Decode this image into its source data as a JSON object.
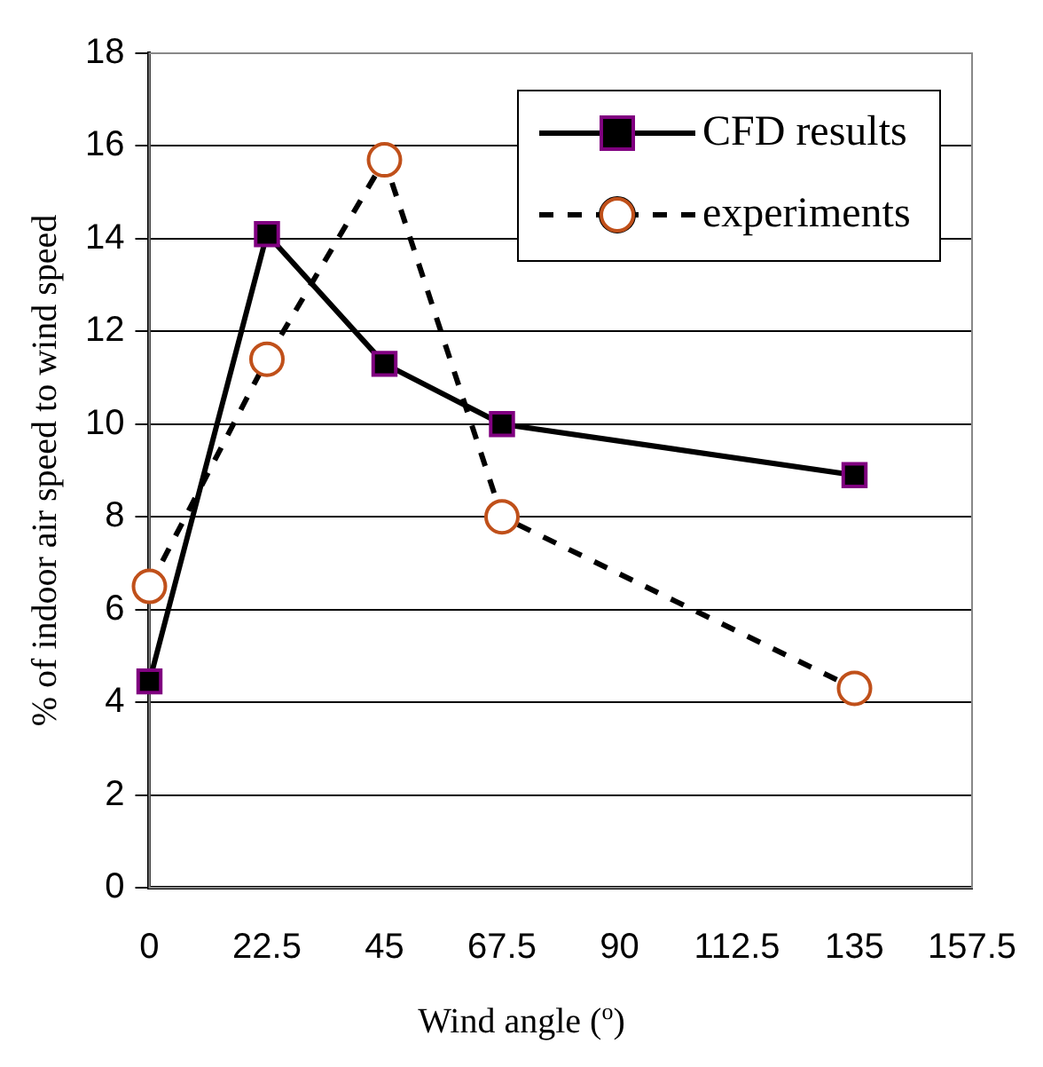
{
  "chart_data": {
    "type": "line",
    "xlabel": "Wind angle ($^{o}$)",
    "ylabel": "% of indoor air speed to wind speed",
    "x": [
      0,
      22.5,
      45,
      67.5,
      135
    ],
    "series": [
      {
        "name": "CFD results",
        "color": "#800080",
        "marker": "square",
        "line_style": "solid",
        "values": [
          4.45,
          14.1,
          11.3,
          10.0,
          8.9
        ]
      },
      {
        "name": "experiments",
        "color": "#c0501a",
        "marker": "circle",
        "line_style": "dashed",
        "values": [
          6.5,
          11.4,
          15.7,
          8.0,
          4.3
        ]
      }
    ],
    "xlim": [
      0,
      157.5
    ],
    "xticks": [
      0,
      22.5,
      45,
      67.5,
      90,
      112.5,
      135,
      157.5
    ],
    "ylim": [
      0,
      18
    ],
    "yticks": [
      0,
      2,
      4,
      6,
      8,
      10,
      12,
      14,
      16,
      18
    ],
    "grid": "y",
    "legend": "top right"
  }
}
